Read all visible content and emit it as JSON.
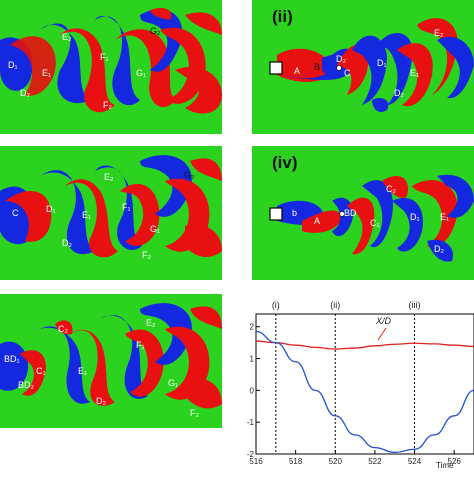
{
  "figure": {
    "panels": [
      {
        "id": "left-top",
        "label": "",
        "vortices": [
          "D₁",
          "E₁",
          "E₂",
          "F₁",
          "G₁",
          "G₂",
          "D₂",
          "F₂"
        ]
      },
      {
        "id": "right-top",
        "label": "(ii)",
        "vortices": [
          "A",
          "B",
          "D₂",
          "C",
          "D₁",
          "E₁",
          "E₂",
          "D₂"
        ]
      },
      {
        "id": "left-mid",
        "label": "",
        "vortices": [
          "C",
          "D₁",
          "E₁",
          "E₂",
          "G₁",
          "G₂",
          "F₁",
          "D₂",
          "F₂"
        ]
      },
      {
        "id": "right-mid",
        "label": "(iv)",
        "vortices": [
          "b",
          "A",
          "BD",
          "C₁",
          "C₂",
          "D₁",
          "E₁",
          "D₂"
        ]
      },
      {
        "id": "left-bot",
        "label": "",
        "vortices": [
          "BD₁",
          "BD₂",
          "C₁",
          "C₂",
          "E₁",
          "E₂",
          "F₁",
          "G₁",
          "D₂",
          "F₂"
        ]
      }
    ]
  },
  "chart_data": {
    "type": "line",
    "xlabel": "Time",
    "ylabel": "",
    "xlim": [
      516,
      527
    ],
    "ylim": [
      -2,
      2.4
    ],
    "x_ticks": [
      "516",
      "518",
      "520",
      "522",
      "524",
      "526"
    ],
    "y_ticks": [
      "-2",
      "-1",
      "0",
      "1",
      "2"
    ],
    "series": [
      {
        "name": "X/D",
        "color": "#e02020",
        "x": [
          516,
          517,
          518,
          519,
          520,
          521,
          522,
          523,
          524,
          525,
          526,
          527
        ],
        "y": [
          1.55,
          1.5,
          1.42,
          1.35,
          1.3,
          1.33,
          1.4,
          1.45,
          1.48,
          1.46,
          1.42,
          1.38
        ]
      },
      {
        "name": "",
        "color": "#2050d0",
        "x": [
          516,
          517,
          518,
          519,
          520,
          521,
          522,
          523,
          524,
          525,
          526,
          527
        ],
        "y": [
          1.85,
          1.5,
          0.9,
          0.0,
          -0.8,
          -1.4,
          -1.8,
          -1.95,
          -1.85,
          -1.4,
          -0.8,
          0.0
        ]
      }
    ],
    "markers": [
      {
        "label": "(i)",
        "x": 517
      },
      {
        "label": "(ii)",
        "x": 520
      },
      {
        "label": "(iii)",
        "x": 524
      }
    ],
    "annotation": "X/D"
  },
  "colors": {
    "background": "#2bd31f",
    "positive": "#e81010",
    "negative": "#1428e0"
  }
}
